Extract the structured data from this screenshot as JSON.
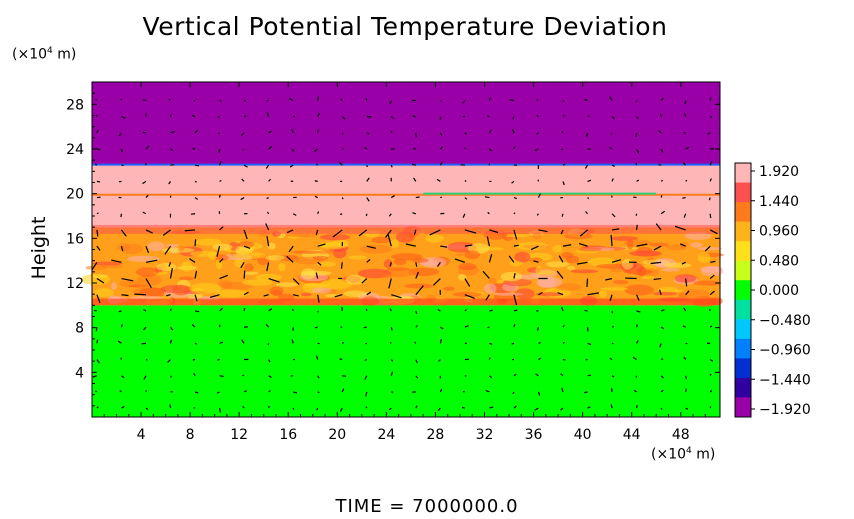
{
  "chart_data": {
    "type": "heatmap",
    "title": "Vertical Potential Temperature Deviation",
    "ylabel": "Height",
    "xlabel": "",
    "x_unit": "(×10⁴ m)",
    "y_unit": "(×10⁴ m)",
    "x_ticks": [
      4,
      8,
      12,
      16,
      20,
      24,
      28,
      32,
      36,
      40,
      44,
      48
    ],
    "y_ticks": [
      4,
      8,
      12,
      16,
      20,
      24,
      28
    ],
    "xlim": [
      0,
      51.2
    ],
    "ylim": [
      0,
      30
    ],
    "colorbar": {
      "labels": [
        "1.920",
        "1.440",
        "0.960",
        "0.480",
        "0.000",
        "−0.480",
        "−0.960",
        "−1.440",
        "−1.920"
      ],
      "range": [
        -1.92,
        1.92
      ]
    },
    "bands": [
      {
        "from": 0,
        "to": 10,
        "value": 0.0,
        "color": "#00ff00"
      },
      {
        "from": 10,
        "to": 17,
        "value": 1.2,
        "color": "#ff9f1a"
      },
      {
        "from": 17,
        "to": 22.6,
        "value": 1.92,
        "color": "#ffb6b6"
      },
      {
        "from": 22.6,
        "to": 30,
        "value": -1.92,
        "color": "#9900a8"
      }
    ],
    "vectors": "wind vector arrows overlaid across the field",
    "footer": "TIME  =  7000000.0"
  },
  "colors": {
    "purple": "#9900a8",
    "pink": "#ffb6b6",
    "orange": "#ff9f1a",
    "green": "#00ff00"
  }
}
